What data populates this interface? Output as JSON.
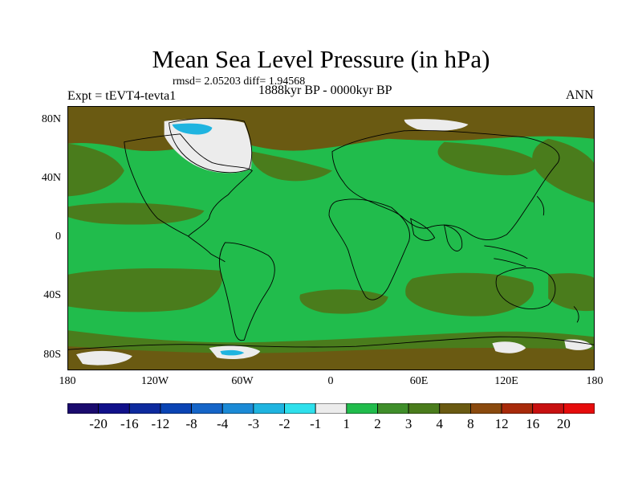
{
  "title": "Mean Sea Level Pressure (in hPa)",
  "stats_text": "rmsd= 2.05203 diff= 1.94568",
  "period_text": "1888kyr BP - 0000kyr BP",
  "experiment_text": "Expt = tEVT4-tevta1",
  "season": "ANN",
  "lat_labels": [
    "80N",
    "40N",
    "0",
    "40S",
    "80S"
  ],
  "lon_labels": [
    "180",
    "120W",
    "60W",
    "0",
    "60E",
    "120E",
    "180"
  ],
  "colorbar": {
    "labels": [
      "-20",
      "-16",
      "-12",
      "-8",
      "-4",
      "-3",
      "-2",
      "-1",
      "1",
      "2",
      "3",
      "4",
      "8",
      "12",
      "16",
      "20"
    ],
    "colors": [
      "#1a0a6e",
      "#10108a",
      "#0d2a9e",
      "#0a44b4",
      "#1565c8",
      "#1b8ad6",
      "#1fb4e0",
      "#2ee0ec",
      "#ececec",
      "#21bc4c",
      "#3f8e2a",
      "#4a7c1c",
      "#6a5a12",
      "#8a4a0e",
      "#a82a0a",
      "#c81010",
      "#e60c0c"
    ]
  },
  "map": {
    "ocean_color": "#21bc4c",
    "brown_color": "#6a5a12",
    "olive_color": "#4a7c1c",
    "white_color": "#ececec",
    "cyan_color": "#1fb4e0",
    "lightblue_color": "#1b8ad6"
  }
}
